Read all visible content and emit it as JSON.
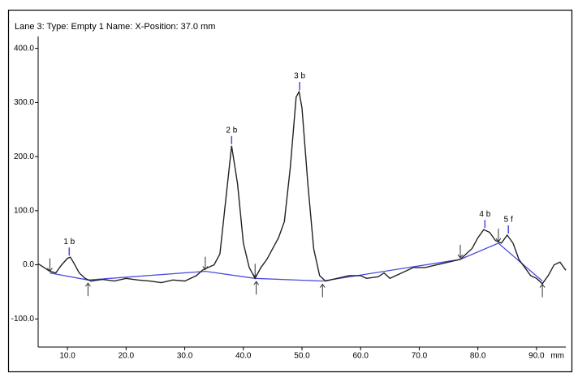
{
  "chart_data": {
    "type": "line",
    "title": "Lane 3:  Type: Empty  1    Name:     X-Position: 37.0 mm",
    "x_unit": "mm",
    "xlim": [
      5,
      95
    ],
    "xticks": [
      {
        "value": 10,
        "label": "10.0"
      },
      {
        "value": 20,
        "label": "20.0"
      },
      {
        "value": 30,
        "label": "30.0"
      },
      {
        "value": 40,
        "label": "40.0"
      },
      {
        "value": 50,
        "label": "50.0"
      },
      {
        "value": 60,
        "label": "60.0"
      },
      {
        "value": 70,
        "label": "70.0"
      },
      {
        "value": 80,
        "label": "80.0"
      },
      {
        "value": 90,
        "label": "90.0"
      }
    ],
    "ylim": [
      -152,
      422
    ],
    "yticks": [
      {
        "value": -100,
        "label": "-100.0"
      },
      {
        "value": 0,
        "label": "0.0"
      },
      {
        "value": 100,
        "label": "100.0"
      },
      {
        "value": 200,
        "label": "200.0"
      },
      {
        "value": 300,
        "label": "300.0"
      },
      {
        "value": 400,
        "label": "400.0"
      }
    ],
    "x": [
      5,
      6,
      7,
      8,
      9,
      10,
      10.5,
      11,
      12,
      13,
      14,
      16,
      18,
      20,
      22,
      24,
      26,
      28,
      30,
      32,
      33,
      34,
      35,
      36,
      37,
      38,
      39,
      40,
      41,
      42,
      43,
      44,
      45,
      46,
      47,
      48,
      49,
      49.5,
      50,
      51,
      52,
      53,
      54,
      56,
      58,
      60,
      61,
      63,
      64,
      65,
      67,
      69,
      71,
      73,
      75,
      77,
      79,
      80,
      81,
      82,
      83,
      84,
      85,
      86,
      87,
      89,
      90,
      91,
      92,
      93,
      94,
      95
    ],
    "values": [
      2,
      -5,
      -12,
      -15,
      0,
      12,
      14,
      5,
      -15,
      -25,
      -30,
      -27,
      -30,
      -25,
      -28,
      -30,
      -33,
      -28,
      -30,
      -20,
      -10,
      -5,
      0,
      20,
      120,
      220,
      150,
      40,
      -5,
      -25,
      -5,
      10,
      30,
      50,
      80,
      180,
      310,
      320,
      290,
      150,
      30,
      -20,
      -30,
      -25,
      -20,
      -20,
      -25,
      -22,
      -15,
      -25,
      -15,
      -5,
      -5,
      0,
      5,
      10,
      30,
      50,
      65,
      60,
      45,
      40,
      55,
      40,
      10,
      -20,
      -25,
      -35,
      -20,
      0,
      5,
      -10
    ],
    "color": "#222222",
    "baseline": {
      "x": [
        7,
        13.5,
        33.5,
        42,
        53.5,
        77,
        83.5,
        91
      ],
      "values": [
        -15,
        -28,
        -12,
        -25,
        -30,
        10,
        40,
        -30
      ],
      "color": "#4a4ae0"
    },
    "peaks": [
      {
        "label": "1 b",
        "x": 10.3,
        "value": 14
      },
      {
        "label": "2 b",
        "x": 38,
        "value": 220
      },
      {
        "label": "3 b",
        "x": 49.6,
        "value": 320
      },
      {
        "label": "4 b",
        "x": 81.2,
        "value": 65
      },
      {
        "label": "5 f",
        "x": 85.2,
        "value": 55
      }
    ],
    "boundaries": [
      {
        "x": 7,
        "value": -15,
        "direction": "down"
      },
      {
        "x": 13.5,
        "value": -28,
        "direction": "up"
      },
      {
        "x": 33.5,
        "value": -12,
        "direction": "down"
      },
      {
        "x": 42,
        "value": -25,
        "direction": "down"
      },
      {
        "x": 42.2,
        "value": -25,
        "direction": "up"
      },
      {
        "x": 53.5,
        "value": -30,
        "direction": "up"
      },
      {
        "x": 77,
        "value": 10,
        "direction": "down"
      },
      {
        "x": 83.5,
        "value": 40,
        "direction": "down"
      },
      {
        "x": 91,
        "value": -30,
        "direction": "up"
      }
    ]
  }
}
